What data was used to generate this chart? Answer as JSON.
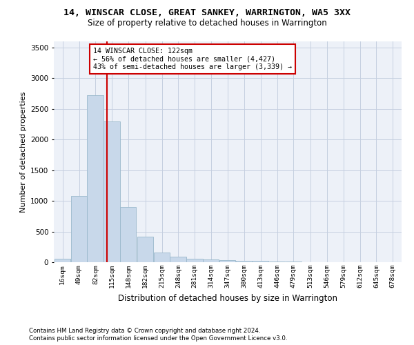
{
  "title": "14, WINSCAR CLOSE, GREAT SANKEY, WARRINGTON, WA5 3XX",
  "subtitle": "Size of property relative to detached houses in Warrington",
  "xlabel": "Distribution of detached houses by size in Warrington",
  "ylabel": "Number of detached properties",
  "bar_color": "#c8d8ea",
  "bar_edge_color": "#9ab8cc",
  "grid_color": "#c5cfe0",
  "bg_color": "#edf1f8",
  "annotation_box_color": "#cc0000",
  "annotation_line_color": "#cc0000",
  "property_sqm": 122,
  "annotation_lines": [
    "14 WINSCAR CLOSE: 122sqm",
    "← 56% of detached houses are smaller (4,427)",
    "43% of semi-detached houses are larger (3,339) →"
  ],
  "categories": [
    "16sqm",
    "49sqm",
    "82sqm",
    "115sqm",
    "148sqm",
    "182sqm",
    "215sqm",
    "248sqm",
    "281sqm",
    "314sqm",
    "347sqm",
    "380sqm",
    "413sqm",
    "446sqm",
    "479sqm",
    "513sqm",
    "546sqm",
    "579sqm",
    "612sqm",
    "645sqm",
    "678sqm"
  ],
  "bin_starts": [
    16,
    49,
    82,
    115,
    148,
    182,
    215,
    248,
    281,
    314,
    347,
    380,
    413,
    446,
    479,
    513,
    546,
    579,
    612,
    645,
    678
  ],
  "bin_width": 33,
  "values": [
    60,
    1080,
    2720,
    2300,
    900,
    420,
    160,
    95,
    60,
    40,
    30,
    25,
    20,
    10,
    8,
    5,
    4,
    3,
    3,
    2,
    2
  ],
  "ylim": [
    0,
    3600
  ],
  "yticks": [
    0,
    500,
    1000,
    1500,
    2000,
    2500,
    3000,
    3500
  ],
  "footnote1": "Contains HM Land Registry data © Crown copyright and database right 2024.",
  "footnote2": "Contains public sector information licensed under the Open Government Licence v3.0."
}
